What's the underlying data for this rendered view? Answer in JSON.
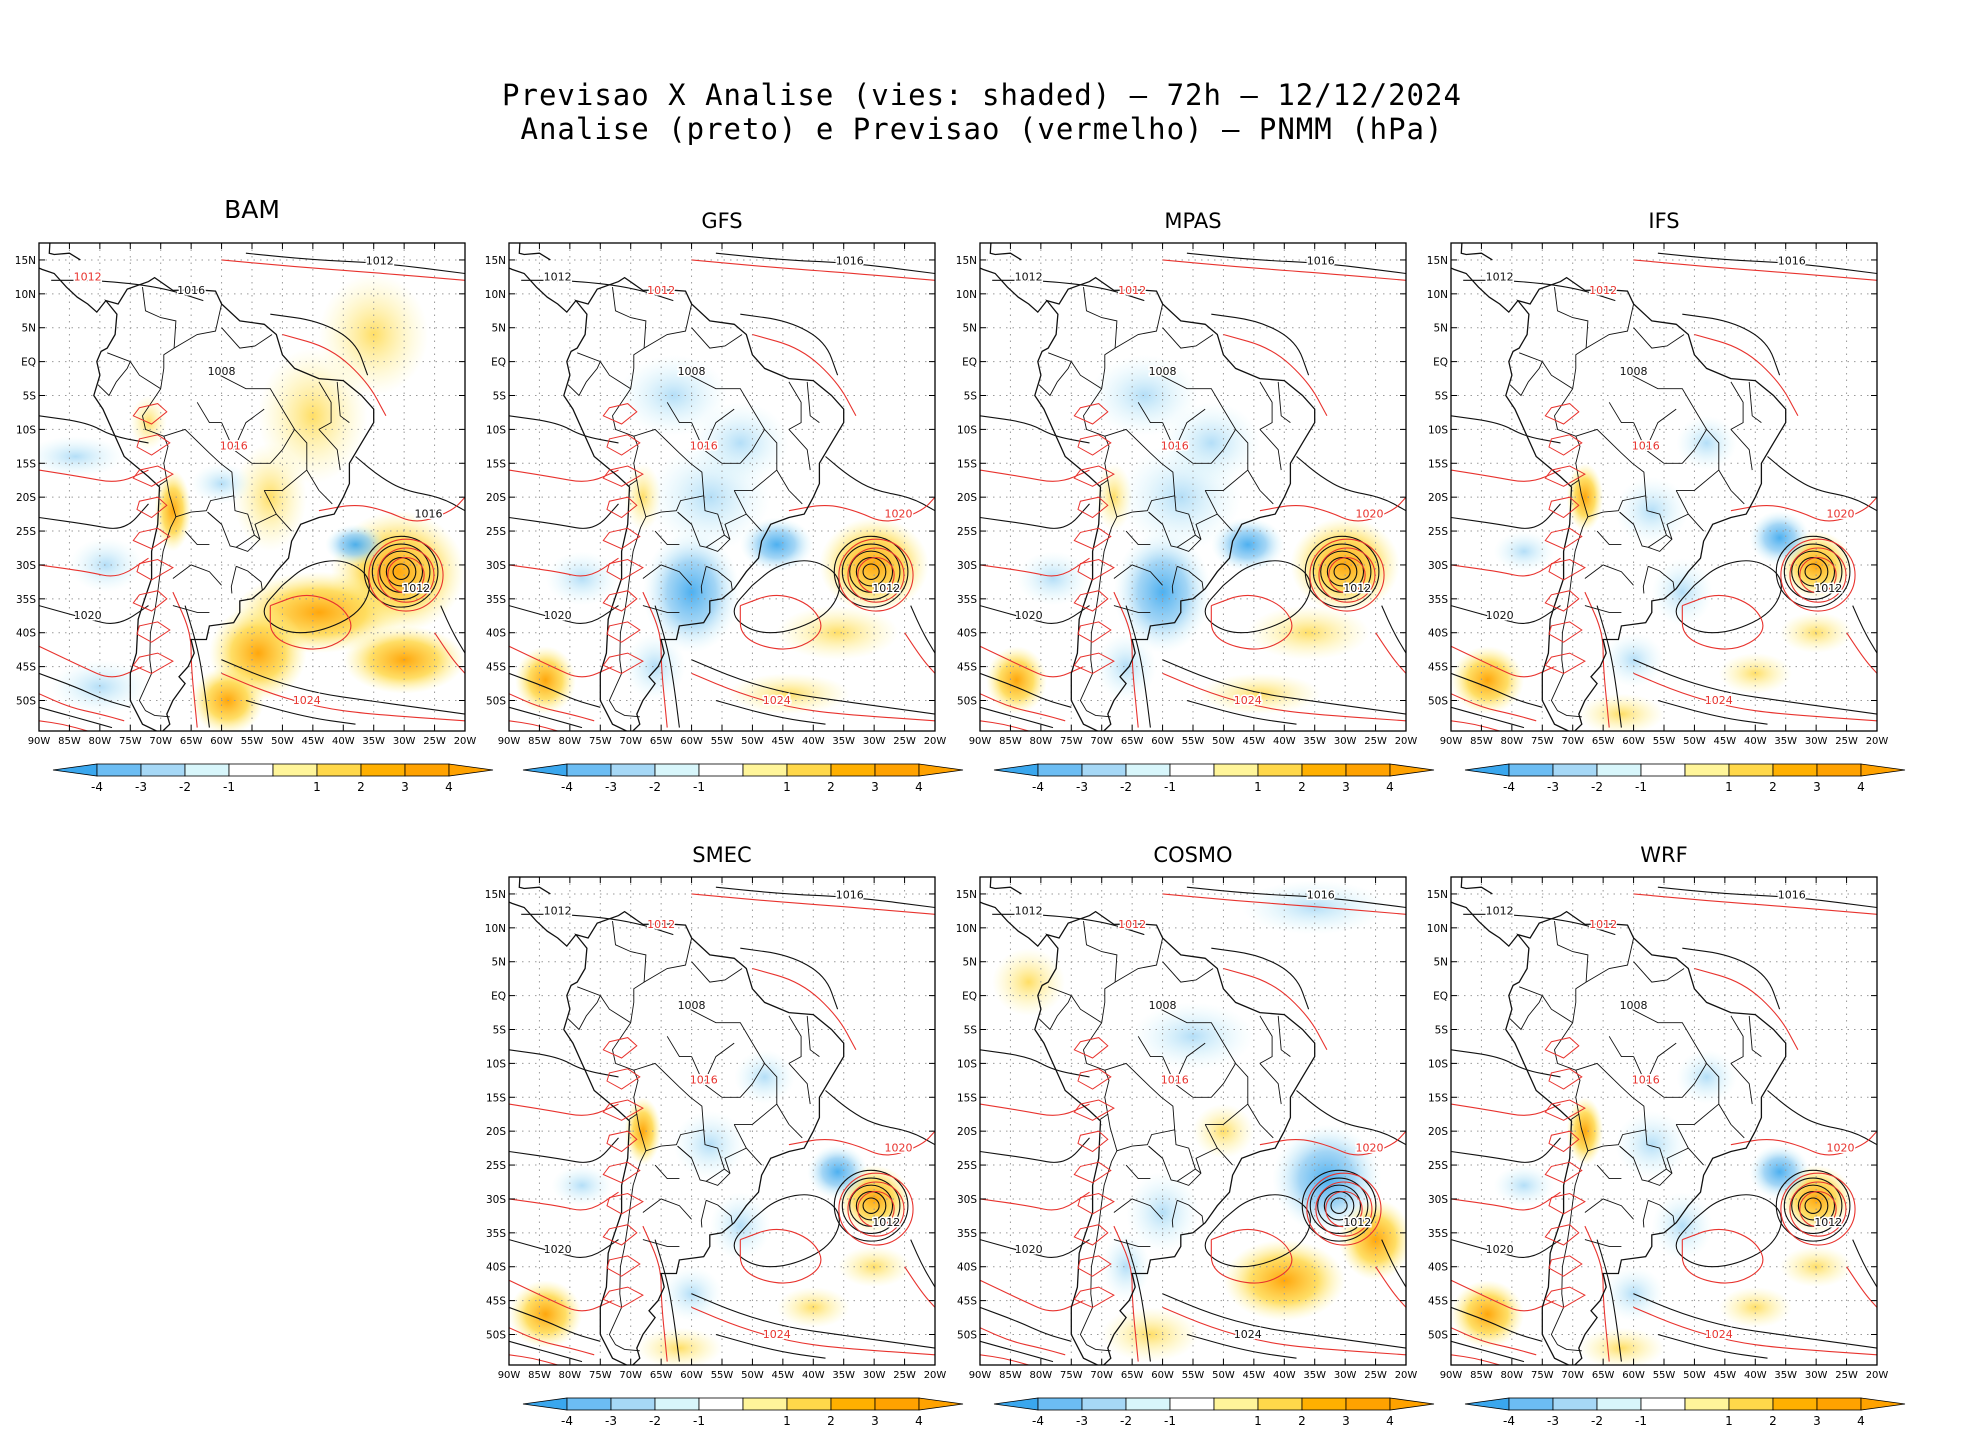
{
  "figure": {
    "title_line1": "Previsao X Analise (vies: shaded) – 72h – 12/12/2024",
    "title_line2": "Analise (preto) e Previsao (vermelho) – PNMM (hPa)"
  },
  "lat_labels": [
    "15N",
    "10N",
    "5N",
    "EQ",
    "5S",
    "10S",
    "15S",
    "20S",
    "25S",
    "30S",
    "35S",
    "40S",
    "45S",
    "50S"
  ],
  "lon_labels": [
    "90W",
    "85W",
    "80W",
    "75W",
    "70W",
    "65W",
    "60W",
    "55W",
    "50W",
    "45W",
    "40W",
    "35W",
    "30W",
    "25W",
    "20W"
  ],
  "colorbar": {
    "labels": [
      "-4",
      "-3",
      "-2",
      "-1",
      "1",
      "2",
      "3",
      "4"
    ],
    "colors": [
      "#3aa7ee",
      "#6cbdf3",
      "#a6d8f6",
      "#d8f6fb",
      "#ffffff",
      "#fff59a",
      "#ffd84a",
      "#ffb000",
      "#ffa200"
    ]
  },
  "legend": {
    "analysis_color": "#111111",
    "forecast_color": "#e8332e"
  },
  "panels": [
    {
      "name": "BAM",
      "anom": "mixed-warm",
      "contours": [
        {
          "v": "1012",
          "c": "r"
        },
        {
          "v": "1012",
          "c": "k"
        },
        {
          "v": "1016",
          "c": "k"
        },
        {
          "v": "1008",
          "c": "k"
        },
        {
          "v": "1020",
          "c": "k"
        },
        {
          "v": "1024",
          "c": "r"
        },
        {
          "v": "1012",
          "c": "k"
        },
        {
          "v": "1016",
          "c": "r"
        },
        {
          "v": "1016",
          "c": "k"
        }
      ]
    },
    {
      "name": "GFS",
      "anom": "cool-continent",
      "contours": [
        {
          "v": "1012",
          "c": "k"
        },
        {
          "v": "1016",
          "c": "k"
        },
        {
          "v": "1012",
          "c": "r"
        },
        {
          "v": "1008",
          "c": "k"
        },
        {
          "v": "1020",
          "c": "k"
        },
        {
          "v": "1024",
          "c": "r"
        },
        {
          "v": "1012",
          "c": "k"
        },
        {
          "v": "1016",
          "c": "r"
        },
        {
          "v": "1020",
          "c": "r"
        }
      ]
    },
    {
      "name": "MPAS",
      "anom": "cool-continent",
      "contours": [
        {
          "v": "1012",
          "c": "k"
        },
        {
          "v": "1016",
          "c": "k"
        },
        {
          "v": "1012",
          "c": "r"
        },
        {
          "v": "1008",
          "c": "k"
        },
        {
          "v": "1020",
          "c": "k"
        },
        {
          "v": "1024",
          "c": "r"
        },
        {
          "v": "1012",
          "c": "k"
        },
        {
          "v": "1016",
          "c": "r"
        },
        {
          "v": "1020",
          "c": "r"
        }
      ]
    },
    {
      "name": "IFS",
      "anom": "neutral",
      "contours": [
        {
          "v": "1012",
          "c": "k"
        },
        {
          "v": "1016",
          "c": "k"
        },
        {
          "v": "1012",
          "c": "r"
        },
        {
          "v": "1008",
          "c": "k"
        },
        {
          "v": "1020",
          "c": "k"
        },
        {
          "v": "1024",
          "c": "r"
        },
        {
          "v": "1012",
          "c": "k"
        },
        {
          "v": "1016",
          "c": "r"
        },
        {
          "v": "1020",
          "c": "r"
        }
      ]
    },
    {
      "name": "SMEC",
      "anom": "neutral",
      "contours": [
        {
          "v": "1012",
          "c": "k"
        },
        {
          "v": "1016",
          "c": "k"
        },
        {
          "v": "1012",
          "c": "r"
        },
        {
          "v": "1008",
          "c": "k"
        },
        {
          "v": "1020",
          "c": "k"
        },
        {
          "v": "1024",
          "c": "r"
        },
        {
          "v": "1012",
          "c": "k"
        },
        {
          "v": "1016",
          "c": "r"
        },
        {
          "v": "1020",
          "c": "r"
        }
      ]
    },
    {
      "name": "COSMO",
      "anom": "cool-ocean",
      "contours": [
        {
          "v": "1012",
          "c": "k"
        },
        {
          "v": "1016",
          "c": "k"
        },
        {
          "v": "1012",
          "c": "r"
        },
        {
          "v": "1008",
          "c": "k"
        },
        {
          "v": "1020",
          "c": "k"
        },
        {
          "v": "1024",
          "c": "k"
        },
        {
          "v": "1012",
          "c": "k"
        },
        {
          "v": "1016",
          "c": "r"
        },
        {
          "v": "1020",
          "c": "r"
        }
      ]
    },
    {
      "name": "WRF",
      "anom": "neutral",
      "contours": [
        {
          "v": "1012",
          "c": "k"
        },
        {
          "v": "1016",
          "c": "k"
        },
        {
          "v": "1012",
          "c": "r"
        },
        {
          "v": "1008",
          "c": "k"
        },
        {
          "v": "1020",
          "c": "k"
        },
        {
          "v": "1024",
          "c": "r"
        },
        {
          "v": "1012",
          "c": "k"
        },
        {
          "v": "1016",
          "c": "r"
        },
        {
          "v": "1020",
          "c": "r"
        }
      ]
    }
  ]
}
